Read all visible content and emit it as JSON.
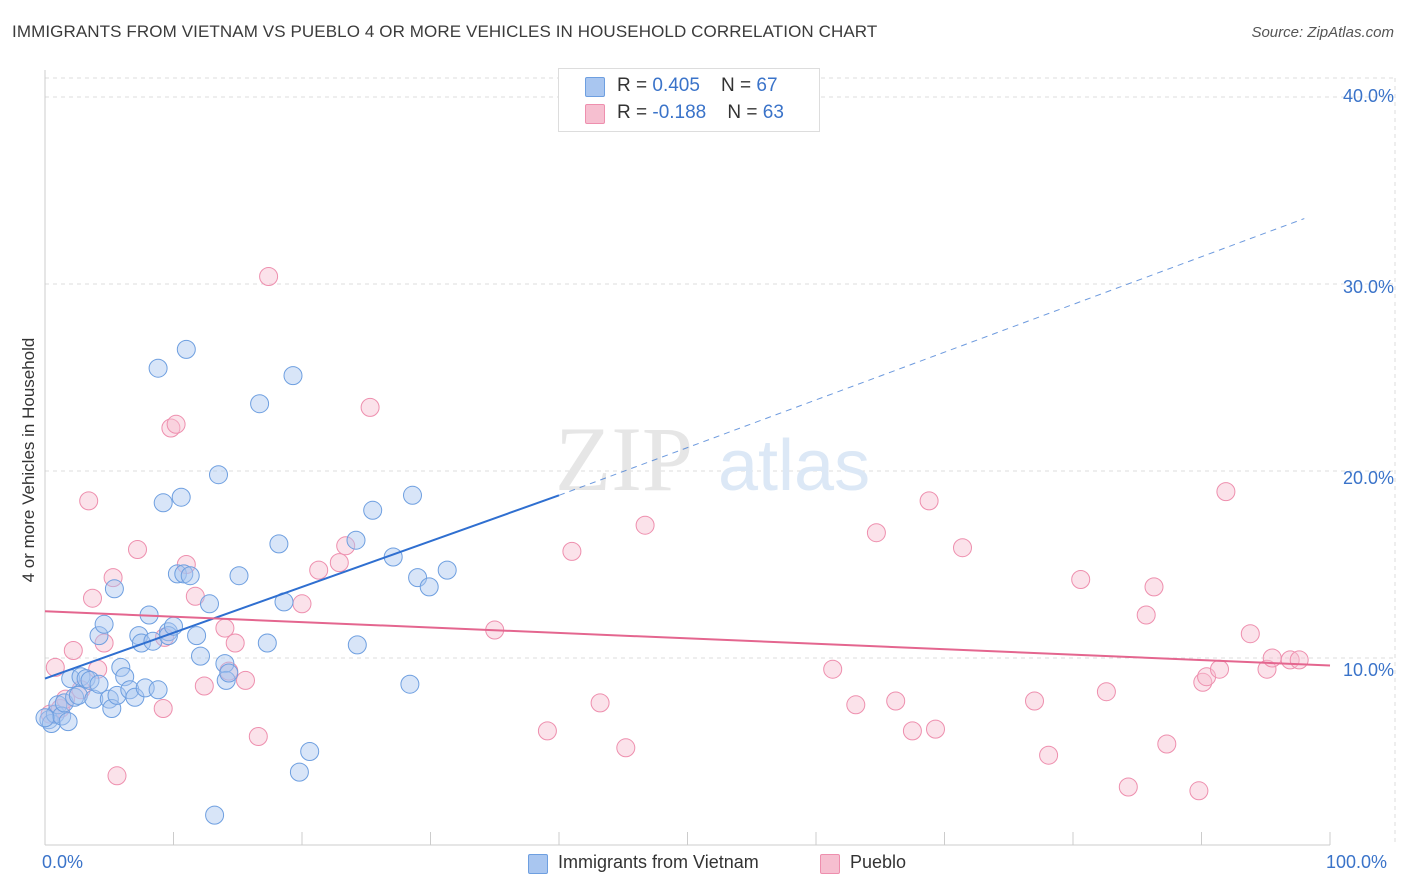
{
  "title": "IMMIGRANTS FROM VIETNAM VS PUEBLO 4 OR MORE VEHICLES IN HOUSEHOLD CORRELATION CHART",
  "source": "Source: ZipAtlas.com",
  "watermark": {
    "zip": "ZIP",
    "atlas": "atlas"
  },
  "colors": {
    "blue_fill": "#a9c6f0",
    "blue_stroke": "#6e9fe0",
    "blue_line": "#2f6fd0",
    "pink_fill": "#f6bfd0",
    "pink_stroke": "#ee8fae",
    "pink_line": "#e4668f",
    "grid": "#dddddd",
    "tick_text": "#3a73c9"
  },
  "legend_top": [
    {
      "r_label": "R = ",
      "r_value": "0.405",
      "n_label": "N = ",
      "n_value": "67",
      "color": "#a9c6f0"
    },
    {
      "r_label": "R = ",
      "r_value": "-0.188",
      "n_label": "N = ",
      "n_value": "63",
      "color": "#f6bfd0"
    }
  ],
  "bottom_legend": [
    {
      "label": "Immigrants from Vietnam",
      "color": "#a9c6f0"
    },
    {
      "label": "Pueblo",
      "color": "#f6bfd0"
    }
  ],
  "chart_data": {
    "type": "scatter",
    "xlabel": "",
    "ylabel": "4 or more Vehicles in Household",
    "x_ticks": [
      "0.0%",
      "100.0%"
    ],
    "y_ticks": [
      "10.0%",
      "20.0%",
      "30.0%",
      "40.0%"
    ],
    "xlim": [
      0,
      100
    ],
    "ylim": [
      0,
      41
    ],
    "grid": true,
    "legend_placement": "top-center",
    "series": [
      {
        "name": "Immigrants from Vietnam",
        "trend": {
          "x": [
            0,
            40
          ],
          "y": [
            8.9,
            18.7
          ],
          "extended_x": [
            40,
            98
          ],
          "extended_y": [
            18.7,
            33.5
          ]
        },
        "points": [
          [
            0.3,
            6.7
          ],
          [
            0.5,
            6.5
          ],
          [
            0.8,
            7.0
          ],
          [
            1.0,
            7.5
          ],
          [
            1.3,
            6.9
          ],
          [
            1.5,
            7.6
          ],
          [
            1.8,
            6.6
          ],
          [
            2.0,
            8.9
          ],
          [
            2.3,
            7.9
          ],
          [
            2.6,
            8.0
          ],
          [
            2.8,
            9.0
          ],
          [
            3.2,
            8.9
          ],
          [
            3.5,
            8.8
          ],
          [
            3.8,
            7.8
          ],
          [
            4.2,
            8.6
          ],
          [
            4.2,
            11.2
          ],
          [
            4.6,
            11.8
          ],
          [
            5.0,
            7.8
          ],
          [
            5.2,
            7.3
          ],
          [
            5.4,
            13.7
          ],
          [
            5.6,
            8.0
          ],
          [
            5.9,
            9.5
          ],
          [
            6.2,
            9.0
          ],
          [
            6.6,
            8.3
          ],
          [
            7.0,
            7.9
          ],
          [
            7.3,
            11.2
          ],
          [
            7.5,
            10.8
          ],
          [
            7.8,
            8.4
          ],
          [
            8.1,
            12.3
          ],
          [
            8.4,
            10.9
          ],
          [
            8.8,
            8.3
          ],
          [
            8.8,
            25.5
          ],
          [
            9.2,
            18.3
          ],
          [
            9.6,
            11.4
          ],
          [
            9.6,
            11.2
          ],
          [
            10.0,
            11.7
          ],
          [
            10.3,
            14.5
          ],
          [
            10.6,
            18.6
          ],
          [
            10.8,
            14.5
          ],
          [
            11.0,
            26.5
          ],
          [
            11.3,
            14.4
          ],
          [
            11.8,
            11.2
          ],
          [
            12.1,
            10.1
          ],
          [
            12.8,
            12.9
          ],
          [
            13.2,
            1.6
          ],
          [
            13.5,
            19.8
          ],
          [
            14.0,
            9.7
          ],
          [
            14.1,
            8.8
          ],
          [
            14.3,
            9.2
          ],
          [
            15.1,
            14.4
          ],
          [
            16.7,
            23.6
          ],
          [
            17.3,
            10.8
          ],
          [
            18.2,
            16.1
          ],
          [
            18.6,
            13.0
          ],
          [
            19.3,
            25.1
          ],
          [
            19.8,
            3.9
          ],
          [
            20.6,
            5.0
          ],
          [
            24.2,
            16.3
          ],
          [
            24.3,
            10.7
          ],
          [
            25.5,
            17.9
          ],
          [
            27.1,
            15.4
          ],
          [
            28.6,
            18.7
          ],
          [
            29.0,
            14.3
          ],
          [
            29.9,
            13.8
          ],
          [
            31.3,
            14.7
          ],
          [
            28.4,
            8.6
          ],
          [
            0.0,
            6.8
          ]
        ]
      },
      {
        "name": "Pueblo",
        "trend": {
          "x": [
            0,
            100
          ],
          "y": [
            12.5,
            9.6
          ]
        },
        "points": [
          [
            0.4,
            7.0
          ],
          [
            0.8,
            9.5
          ],
          [
            1.2,
            7.3
          ],
          [
            1.6,
            7.8
          ],
          [
            2.2,
            10.4
          ],
          [
            2.8,
            8.3
          ],
          [
            3.4,
            18.4
          ],
          [
            3.7,
            13.2
          ],
          [
            4.1,
            9.4
          ],
          [
            4.6,
            10.8
          ],
          [
            5.3,
            14.3
          ],
          [
            5.6,
            3.7
          ],
          [
            7.2,
            15.8
          ],
          [
            9.2,
            7.3
          ],
          [
            9.3,
            11.1
          ],
          [
            9.8,
            22.3
          ],
          [
            10.2,
            22.5
          ],
          [
            11.0,
            15.0
          ],
          [
            11.7,
            13.3
          ],
          [
            12.4,
            8.5
          ],
          [
            14.0,
            11.6
          ],
          [
            14.3,
            9.3
          ],
          [
            14.8,
            10.8
          ],
          [
            15.6,
            8.8
          ],
          [
            16.6,
            5.8
          ],
          [
            17.4,
            30.4
          ],
          [
            20.0,
            12.9
          ],
          [
            21.3,
            14.7
          ],
          [
            22.9,
            15.1
          ],
          [
            23.4,
            16.0
          ],
          [
            25.3,
            23.4
          ],
          [
            35.0,
            11.5
          ],
          [
            39.1,
            6.1
          ],
          [
            41.0,
            15.7
          ],
          [
            43.2,
            7.6
          ],
          [
            45.2,
            5.2
          ],
          [
            46.7,
            17.1
          ],
          [
            61.3,
            9.4
          ],
          [
            63.1,
            7.5
          ],
          [
            64.7,
            16.7
          ],
          [
            66.2,
            7.7
          ],
          [
            67.5,
            6.1
          ],
          [
            68.8,
            18.4
          ],
          [
            69.3,
            6.2
          ],
          [
            71.4,
            15.9
          ],
          [
            77.0,
            7.7
          ],
          [
            78.1,
            4.8
          ],
          [
            80.6,
            14.2
          ],
          [
            82.6,
            8.2
          ],
          [
            84.3,
            3.1
          ],
          [
            85.7,
            12.3
          ],
          [
            86.3,
            13.8
          ],
          [
            87.3,
            5.4
          ],
          [
            89.8,
            2.9
          ],
          [
            90.1,
            8.7
          ],
          [
            90.4,
            9.0
          ],
          [
            91.4,
            9.4
          ],
          [
            91.9,
            18.9
          ],
          [
            93.8,
            11.3
          ],
          [
            95.1,
            9.4
          ],
          [
            95.5,
            10.0
          ],
          [
            96.9,
            9.9
          ],
          [
            97.6,
            9.9
          ]
        ]
      }
    ]
  }
}
